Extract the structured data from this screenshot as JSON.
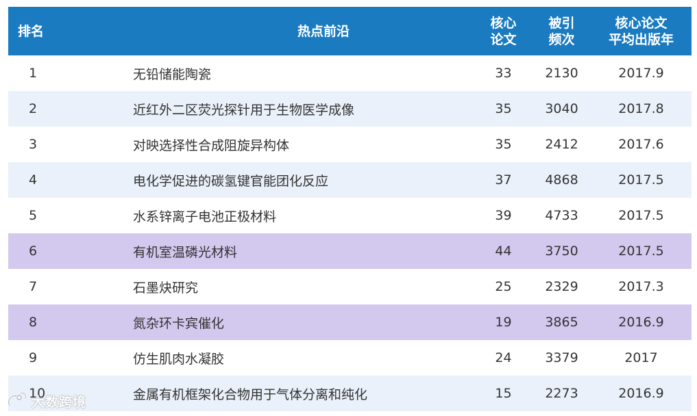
{
  "header": {
    "rank": "排名",
    "topic": "热点前沿",
    "core_line1": "核心",
    "core_line2": "论文",
    "cite_line1": "被引",
    "cite_line2": "频次",
    "year_line1": "核心论文",
    "year_line2": "平均出版年"
  },
  "rows": [
    {
      "rank": "1",
      "topic": "无铅储能陶瓷",
      "core": "33",
      "cite": "2130",
      "year": "2017.9",
      "highlight": false
    },
    {
      "rank": "2",
      "topic": "近红外二区荧光探针用于生物医学成像",
      "core": "35",
      "cite": "3040",
      "year": "2017.8",
      "highlight": false
    },
    {
      "rank": "3",
      "topic": "对映选择性合成阻旋异构体",
      "core": "35",
      "cite": "2412",
      "year": "2017.6",
      "highlight": false
    },
    {
      "rank": "4",
      "topic": "电化学促进的碳氢键官能团化反应",
      "core": "37",
      "cite": "4868",
      "year": "2017.5",
      "highlight": false
    },
    {
      "rank": "5",
      "topic": "水系锌离子电池正极材料",
      "core": "39",
      "cite": "4733",
      "year": "2017.5",
      "highlight": false
    },
    {
      "rank": "6",
      "topic": "有机室温磷光材料",
      "core": "44",
      "cite": "3750",
      "year": "2017.5",
      "highlight": true
    },
    {
      "rank": "7",
      "topic": "石墨炔研究",
      "core": "25",
      "cite": "2329",
      "year": "2017.3",
      "highlight": false
    },
    {
      "rank": "8",
      "topic": "氮杂环卡宾催化",
      "core": "19",
      "cite": "3865",
      "year": "2016.9",
      "highlight": true
    },
    {
      "rank": "9",
      "topic": "仿生肌肉水凝胶",
      "core": "24",
      "cite": "3379",
      "year": "2017",
      "highlight": false
    },
    {
      "rank": "10",
      "topic": "金属有机框架化合物用于气体分离和纯化",
      "core": "15",
      "cite": "2273",
      "year": "2016.9",
      "highlight": false
    }
  ],
  "colors": {
    "header_bg": "#1a7bc1",
    "stripe_blue": "#eaf1fa",
    "highlight_purple": "#d3c8ee"
  },
  "watermark": {
    "text": "大数跨境",
    "icon": "brand-logo-icon"
  }
}
